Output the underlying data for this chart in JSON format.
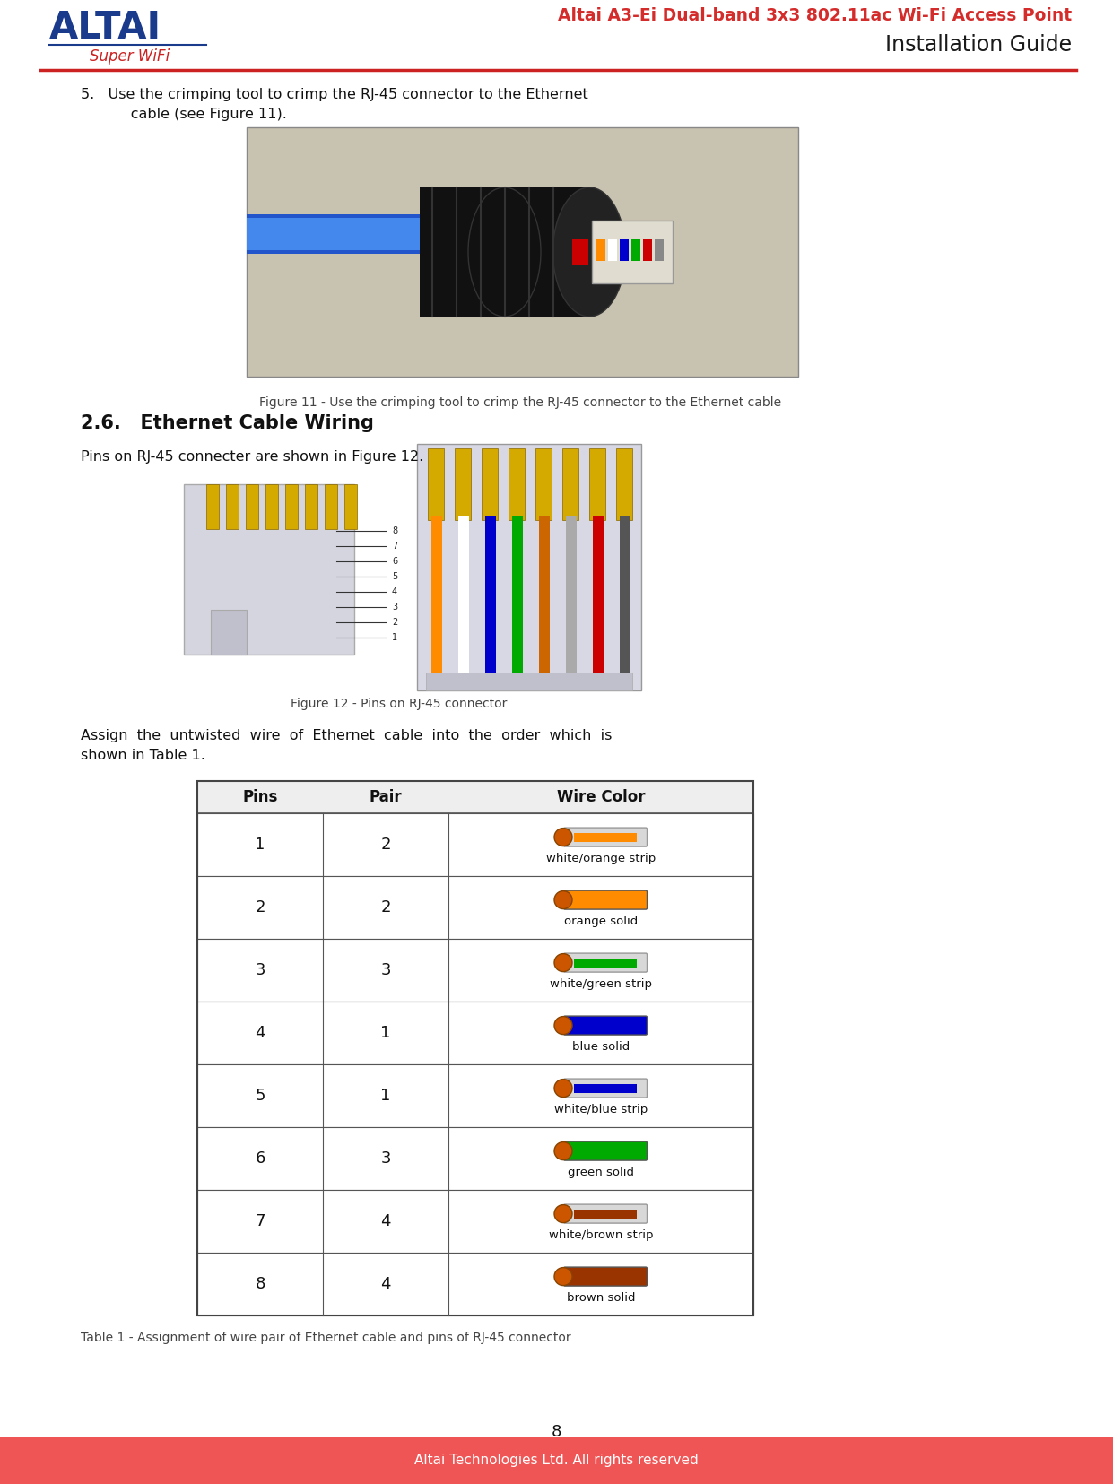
{
  "page_width": 12.41,
  "page_height": 16.55,
  "dpi": 100,
  "bg_color": "#ffffff",
  "header_red_color": "#d42b2b",
  "header_black": "#1a1a1a",
  "header_line_color": "#cc2222",
  "footer_bg_color": "#f05555",
  "footer_text": "Altai Technologies Ltd. All rights reserved",
  "footer_text_color": "#ffffff",
  "page_number": "8",
  "altai_blue": "#1a3a8c",
  "altai_red": "#cc2222",
  "header_title_line1": "Altai A3-Ei Dual-band 3x3 802.11ac Wi-Fi Access Point",
  "header_title_line2": "Installation Guide",
  "fig11_caption": "Figure 11 - Use the crimping tool to crimp the RJ-45 connector to the Ethernet cable",
  "section_26_title": "2.6.   Ethernet Cable Wiring",
  "fig12_intro": "Pins on RJ-45 connecter are shown in Figure 12.",
  "fig12_caption": "Figure 12 - Pins on RJ-45 connector",
  "table_caption": "Table 1 - Assignment of wire pair of Ethernet cable and pins of RJ-45 connector",
  "table_headers": [
    "Pins",
    "Pair",
    "Wire Color"
  ],
  "table_rows": [
    {
      "pin": "1",
      "pair": "2",
      "color_name": "white/orange strip",
      "wire_color": "#FF8C00",
      "is_strip": true
    },
    {
      "pin": "2",
      "pair": "2",
      "color_name": "orange solid",
      "wire_color": "#FF8C00",
      "is_strip": false
    },
    {
      "pin": "3",
      "pair": "3",
      "color_name": "white/green strip",
      "wire_color": "#00aa00",
      "is_strip": true
    },
    {
      "pin": "4",
      "pair": "1",
      "color_name": "blue solid",
      "wire_color": "#0000cc",
      "is_strip": false
    },
    {
      "pin": "5",
      "pair": "1",
      "color_name": "white/blue strip",
      "wire_color": "#0000cc",
      "is_strip": true
    },
    {
      "pin": "6",
      "pair": "3",
      "color_name": "green solid",
      "wire_color": "#00aa00",
      "is_strip": false
    },
    {
      "pin": "7",
      "pair": "4",
      "color_name": "white/brown strip",
      "wire_color": "#993300",
      "is_strip": true
    },
    {
      "pin": "8",
      "pair": "4",
      "color_name": "brown solid",
      "wire_color": "#993300",
      "is_strip": false
    }
  ],
  "step5_line1": "5.   Use the crimping tool to crimp the RJ-45 connector to the Ethernet",
  "step5_line2": "      cable (see Figure 11).",
  "assign_line1": "Assign  the  untwisted  wire  of  Ethernet  cable  into  the  order  which  is",
  "assign_line2": "shown in Table 1."
}
